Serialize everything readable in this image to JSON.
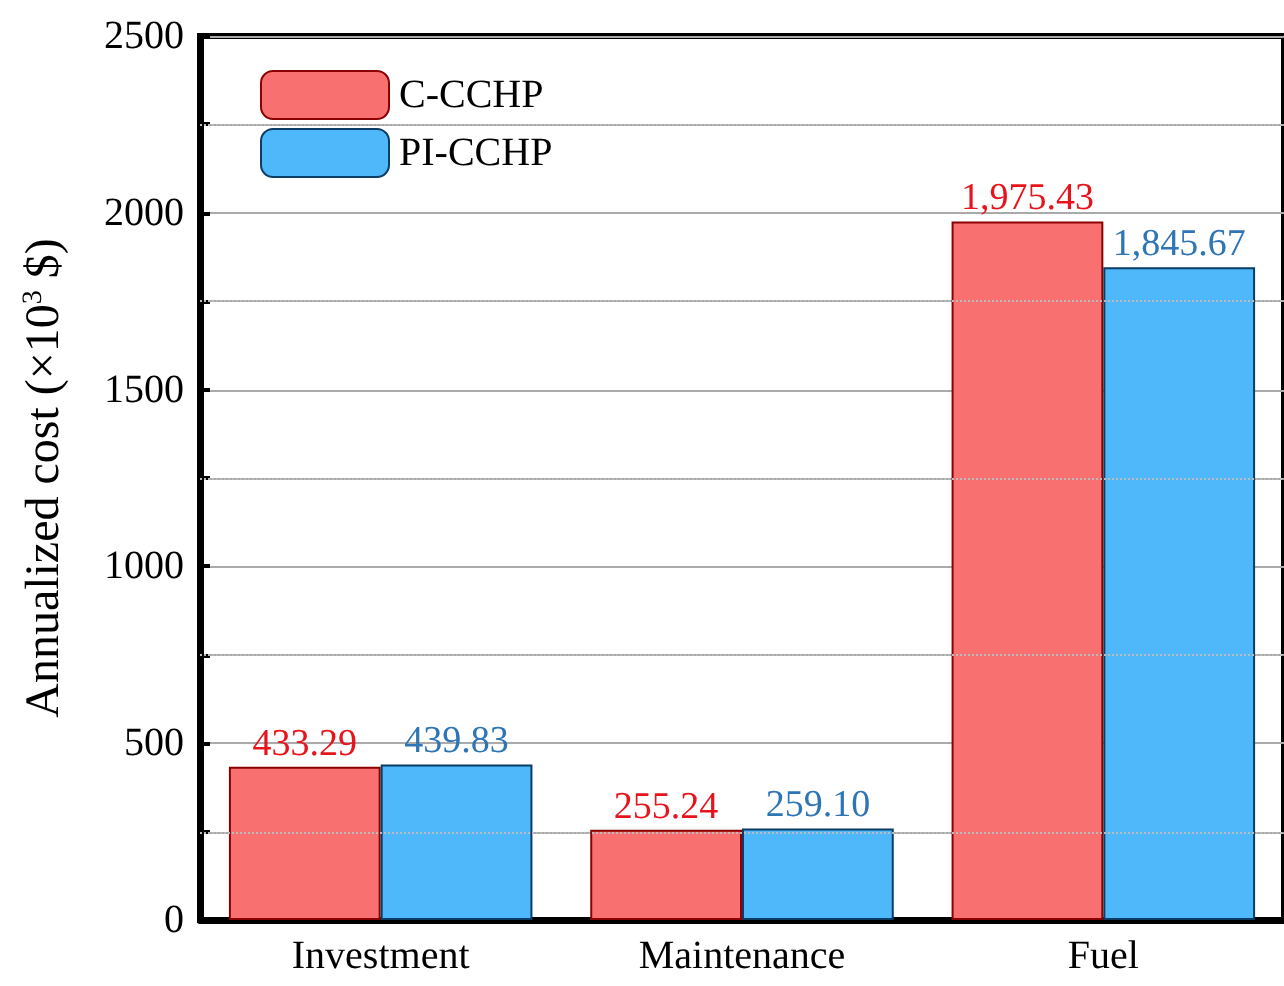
{
  "chart_data": {
    "type": "bar",
    "ylabel": "Annualized cost (×10$^{3}$ $)",
    "categories": [
      "Investment",
      "Maintenance",
      "Fuel"
    ],
    "series": [
      {
        "name": "C-CCHP",
        "color": "#f87070",
        "values": [
          433.29,
          255.24,
          1975.43
        ],
        "value_labels": [
          "433.29",
          "255.24",
          "1,975.43"
        ]
      },
      {
        "name": "PI-CCHP",
        "color": "#4fb8fb",
        "values": [
          439.83,
          259.1,
          1845.67
        ],
        "value_labels": [
          "439.83",
          "259.10",
          "1,845.67"
        ]
      }
    ],
    "ylim": [
      0,
      2500
    ],
    "yticks": [
      0,
      {
        "value": 250,
        "label": null
      },
      500,
      {
        "value": 750,
        "label": null
      },
      1000,
      {
        "value": 1250,
        "label": null
      },
      1500,
      {
        "value": 1750,
        "label": null
      },
      2000,
      {
        "value": 2250,
        "label": null
      },
      2500
    ],
    "grid": "y",
    "legend": "top left"
  }
}
